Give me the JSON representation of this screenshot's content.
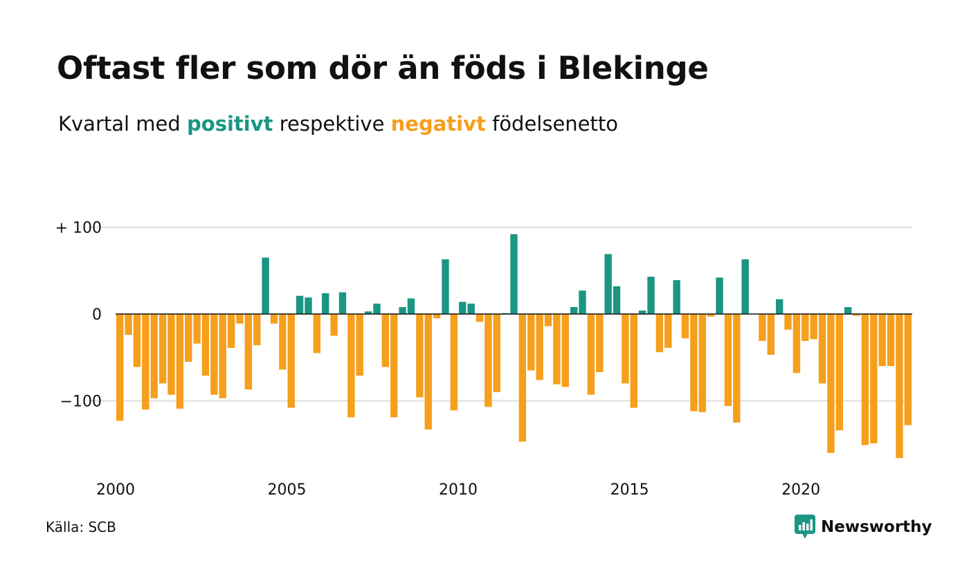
{
  "title": "Oftast fler som dör än föds i Blekinge",
  "subtitle": {
    "prefix": "Kvartal med ",
    "positive_word": "positivt",
    "middle": " respektive ",
    "negative_word": "negativt",
    "suffix": " födelsenetto"
  },
  "colors": {
    "positive": "#1a9683",
    "negative": "#f59f1c",
    "grid": "#dddddd",
    "zero_line": "#111111",
    "text": "#111111"
  },
  "source": "Källa: SCB",
  "brand": {
    "name": "Newsworthy",
    "icon": "newsworthy-logo-icon"
  },
  "chart_data": {
    "type": "bar",
    "title": "Oftast fler som dör än föds i Blekinge",
    "xlabel": "",
    "ylabel": "",
    "start": "2000 Q1",
    "x_ticks": [
      2000,
      2005,
      2010,
      2015,
      2020
    ],
    "y_ticks": [
      100,
      0,
      -100
    ],
    "y_tick_labels": [
      "+ 100",
      "0",
      "−100"
    ],
    "ylim": [
      -180,
      100
    ],
    "grid": true,
    "legend": "none",
    "values": [
      -123,
      -24,
      -61,
      -110,
      -97,
      -80,
      -93,
      -109,
      -55,
      -34,
      -71,
      -93,
      -97,
      -39,
      -11,
      -87,
      -36,
      65,
      -11,
      -64,
      -108,
      21,
      19,
      -45,
      24,
      -25,
      25,
      -119,
      -71,
      3,
      12,
      -61,
      -119,
      8,
      18,
      -96,
      -133,
      -5,
      63,
      -111,
      14,
      12,
      -9,
      -107,
      -90,
      1,
      92,
      -147,
      -65,
      -76,
      -14,
      -81,
      -84,
      8,
      27,
      -93,
      -67,
      69,
      32,
      -80,
      -108,
      4,
      43,
      -44,
      -39,
      39,
      -28,
      -112,
      -113,
      -3,
      42,
      -106,
      -125,
      63,
      0,
      -31,
      -47,
      17,
      -18,
      -68,
      -31,
      -29,
      -80,
      -160,
      -134,
      8,
      -2,
      -151,
      -149,
      -60,
      -60,
      -166,
      -128
    ]
  }
}
